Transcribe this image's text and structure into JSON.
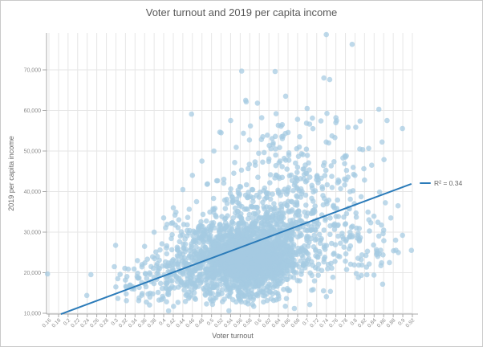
{
  "chart_data": {
    "type": "scatter",
    "title": "Voter turnout and 2019 per capita income",
    "xlabel": "Voter turnout",
    "ylabel": "2019 per capita income",
    "x_tick_labels": [
      "0.16",
      "0.18",
      "0.2",
      "0.22",
      "0.24",
      "0.26",
      "0.28",
      "0.3",
      "0.32",
      "0.34",
      "0.36",
      "0.38",
      "0.4",
      "0.42",
      "0.44",
      "0.46",
      "0.48",
      "0.5",
      "0.52",
      "0.54",
      "0.56",
      "0.58",
      "0.6",
      "0.62",
      "0.64",
      "0.66",
      "0.68",
      "0.7",
      "0.72",
      "0.74",
      "0.76",
      "0.78",
      "0.8",
      "0.82",
      "0.84",
      "0.86",
      "0.88",
      "0.9",
      "0.92"
    ],
    "y_ticks": [
      {
        "value": 10000,
        "label": "10,000"
      },
      {
        "value": 20000,
        "label": "20,000"
      },
      {
        "value": 30000,
        "label": "30,000"
      },
      {
        "value": 40000,
        "label": "40,000"
      },
      {
        "value": 50000,
        "label": "50,000"
      },
      {
        "value": 60000,
        "label": "60,000"
      },
      {
        "value": 70000,
        "label": "70,000"
      }
    ],
    "xlim": [
      0.155,
      0.925
    ],
    "ylim": [
      9800,
      79300
    ],
    "grid": true,
    "legend": {
      "label": "R² = 0.34",
      "position": "right"
    },
    "trendline": {
      "x1": 0.185,
      "y1": 9800,
      "x2": 0.918,
      "y2": 41900
    },
    "colors": {
      "point": "#a5cae2",
      "trend": "#2b7bb9",
      "grid": "#e6e6e6",
      "axis": "#a9a9a9",
      "tick_label": "#8a8a8a",
      "title_text": "#595959"
    },
    "point_opacity": 0.72,
    "point_radius": 3.3,
    "seed": 42,
    "clusters": [
      {
        "n": 1500,
        "cx": 0.578,
        "cy": 23000,
        "sx": 0.052,
        "sy": 3000
      },
      {
        "n": 600,
        "cx": 0.555,
        "cy": 26000,
        "sx": 0.075,
        "sy": 4200
      },
      {
        "n": 300,
        "cx": 0.615,
        "cy": 32500,
        "sx": 0.068,
        "sy": 4200
      },
      {
        "n": 130,
        "cx": 0.655,
        "cy": 41500,
        "sx": 0.068,
        "sy": 4800
      },
      {
        "n": 55,
        "cx": 0.67,
        "cy": 52500,
        "sx": 0.075,
        "sy": 4200
      },
      {
        "n": 160,
        "cx": 0.43,
        "cy": 19000,
        "sx": 0.05,
        "sy": 2800
      },
      {
        "n": 130,
        "cx": 0.56,
        "cy": 15200,
        "sx": 0.065,
        "sy": 1700
      },
      {
        "n": 120,
        "cx": 0.78,
        "cy": 27500,
        "sx": 0.05,
        "sy": 5200
      },
      {
        "n": 30,
        "cx": 0.335,
        "cy": 17000,
        "sx": 0.028,
        "sy": 2300
      },
      {
        "n": 25,
        "cx": 0.75,
        "cy": 45000,
        "sx": 0.06,
        "sy": 4000
      }
    ],
    "outlier_points": [
      [
        0.74,
        78700
      ],
      [
        0.794,
        76300
      ],
      [
        0.735,
        68000
      ],
      [
        0.747,
        67600
      ],
      [
        0.563,
        69700
      ],
      [
        0.633,
        69600
      ],
      [
        0.157,
        19700
      ],
      [
        0.918,
        25500
      ],
      [
        0.85,
        60300
      ],
      [
        0.867,
        57500
      ],
      [
        0.635,
        59200
      ],
      [
        0.605,
        58200
      ],
      [
        0.648,
        56500
      ],
      [
        0.68,
        57800
      ],
      [
        0.7,
        60500
      ],
      [
        0.655,
        63500
      ],
      [
        0.596,
        61800
      ],
      [
        0.712,
        55500
      ],
      [
        0.76,
        57000
      ],
      [
        0.81,
        50500
      ],
      [
        0.835,
        46500
      ],
      [
        0.322,
        13100
      ],
      [
        0.3,
        16500
      ],
      [
        0.86,
        30500
      ],
      [
        0.875,
        33500
      ],
      [
        0.885,
        28000
      ],
      [
        0.89,
        36500
      ],
      [
        0.845,
        24500
      ],
      [
        0.872,
        22500
      ],
      [
        0.825,
        19500
      ],
      [
        0.8,
        44000
      ],
      [
        0.78,
        48500
      ],
      [
        0.745,
        52000
      ],
      [
        0.54,
        57500
      ],
      [
        0.52,
        54500
      ],
      [
        0.505,
        50000
      ],
      [
        0.48,
        47500
      ],
      [
        0.46,
        44000
      ],
      [
        0.44,
        40500
      ],
      [
        0.42,
        36000
      ],
      [
        0.4,
        33500
      ],
      [
        0.38,
        30000
      ],
      [
        0.36,
        26500
      ],
      [
        0.345,
        23000
      ]
    ]
  }
}
